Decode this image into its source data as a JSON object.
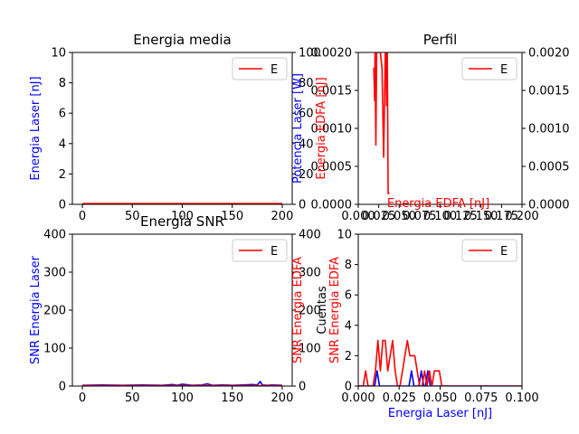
{
  "colors": {
    "blue": "#0000ff",
    "red": "#ff0000",
    "axis": "#000000",
    "legend_edge": "#cccccc"
  },
  "chart_data": [
    {
      "id": "energia-media",
      "type": "line",
      "title": "Energia media",
      "ylabel_left": "Energia Laser [nJ]",
      "ylabel_right": "Potencia Laser [W]",
      "xlim": [
        -10,
        210
      ],
      "ylim_left": [
        0,
        10
      ],
      "ylim_right": [
        0,
        100
      ],
      "xticks": [
        "0",
        "50",
        "100",
        "150",
        "200"
      ],
      "yticks_left": [
        "0",
        "2",
        "4",
        "6",
        "8",
        "10"
      ],
      "yticks_right": [
        "0",
        "20",
        "40",
        "60",
        "80",
        "100"
      ],
      "legend": [
        "E"
      ],
      "legend_position": "upper right",
      "series": [
        {
          "color": "blue",
          "x": [
            0,
            200
          ],
          "y": [
            0.03,
            0.03
          ]
        },
        {
          "name": "E",
          "color": "red",
          "x": [
            0,
            200
          ],
          "y": [
            0.05,
            0.05
          ]
        }
      ]
    },
    {
      "id": "perfil",
      "type": "line",
      "title": "Perfil",
      "ylabel_left": "Energia EDFA [nJ]",
      "xlabel_top": "Energia EDFA [nJ]",
      "xlim": [
        0,
        0.2
      ],
      "ylim_left": [
        0,
        0.002
      ],
      "ylim_right": [
        0,
        0.002
      ],
      "xticks": [
        "0.000",
        "0.025",
        "0.050",
        "0.075",
        "0.100",
        "0.125",
        "0.150",
        "0.175",
        "0.200"
      ],
      "yticks_left": [
        "0.0000",
        "0.0005",
        "0.0010",
        "0.0015",
        "0.0020"
      ],
      "yticks_right": [
        "0.0000",
        "0.0005",
        "0.0010",
        "0.0015",
        "0.0020"
      ],
      "legend": [
        "E"
      ],
      "legend_position": "upper right",
      "series": [
        {
          "name": "E",
          "color": "red",
          "x": [
            0.019,
            0.02,
            0.0205,
            0.021,
            0.0215,
            0.0225,
            0.0235,
            0.025,
            0.027,
            0.029,
            0.031,
            0.033,
            0.034,
            0.0345,
            0.0355,
            0.0365,
            0.038
          ],
          "y": [
            0.0018,
            0.00137,
            0.002,
            0.0014,
            0.00078,
            0.002,
            0.002,
            0.002,
            0.002,
            0.0018,
            0.00062,
            0.002,
            0.002,
            0.0013,
            0.002,
            0.00014,
            0.00015
          ]
        }
      ]
    },
    {
      "id": "energia-snr",
      "type": "line",
      "title": "Energia SNR",
      "ylabel_left": "SNR Energia Laser",
      "ylabel_right": "SNR Energia EDFA",
      "xlim": [
        -10,
        210
      ],
      "ylim_left": [
        0,
        400
      ],
      "ylim_right": [
        0,
        400
      ],
      "xticks": [
        "0",
        "50",
        "100",
        "150",
        "200"
      ],
      "yticks_left": [
        "0",
        "100",
        "200",
        "300",
        "400"
      ],
      "yticks_right": [
        "0",
        "100",
        "200",
        "300",
        "400"
      ],
      "legend": [
        "E"
      ],
      "legend_position": "upper right",
      "series": [
        {
          "color": "blue",
          "x": [
            0,
            20,
            40,
            60,
            80,
            90,
            95,
            100,
            110,
            120,
            125,
            130,
            140,
            150,
            160,
            170,
            175,
            178,
            180,
            185,
            190,
            200
          ],
          "y": [
            2,
            3,
            2,
            3,
            2,
            4,
            2,
            5,
            2,
            3,
            6,
            2,
            3,
            2,
            3,
            4,
            3,
            12,
            3,
            2,
            3,
            2
          ]
        },
        {
          "name": "E",
          "color": "red",
          "x": [
            0,
            200
          ],
          "y": [
            1,
            1
          ]
        }
      ]
    },
    {
      "id": "histograma",
      "type": "line",
      "title": "",
      "xlabel": "Energia Laser [nJ]",
      "ylabel_left": "Cuentas",
      "ylabel_right": "SNR Energia EDFA",
      "xlim": [
        0,
        0.1
      ],
      "ylim_left": [
        0,
        10
      ],
      "xticks": [
        "0.000",
        "0.025",
        "0.050",
        "0.075",
        "0.100"
      ],
      "yticks_left": [
        "0",
        "2",
        "4",
        "6",
        "8",
        "10"
      ],
      "legend": [
        "E"
      ],
      "legend_position": "upper right",
      "series": [
        {
          "color": "blue",
          "x": [
            0,
            0.01,
            0.0115,
            0.013,
            0.031,
            0.0325,
            0.034,
            0.037,
            0.0385,
            0.04,
            0.041,
            0.0425,
            0.044,
            0.1
          ],
          "y": [
            0,
            0,
            1,
            0,
            0,
            1,
            0,
            0,
            1,
            0,
            0,
            1,
            0,
            0
          ]
        },
        {
          "name": "E",
          "color": "red",
          "x": [
            0,
            0.003,
            0.0045,
            0.006,
            0.009,
            0.0105,
            0.012,
            0.0135,
            0.015,
            0.0165,
            0.018,
            0.0195,
            0.021,
            0.0225,
            0.024,
            0.0255,
            0.027,
            0.0285,
            0.03,
            0.0315,
            0.033,
            0.0345,
            0.036,
            0.0375,
            0.039,
            0.0405,
            0.042,
            0.0435,
            0.045,
            0.0465,
            0.048,
            0.0495,
            0.051,
            0.0525,
            0.054,
            0.1
          ],
          "y": [
            0,
            0,
            1,
            0,
            0,
            1,
            3,
            1,
            3,
            3,
            1,
            2,
            3,
            1,
            0,
            0,
            1,
            2,
            3,
            2,
            2,
            2,
            1,
            0,
            0,
            1,
            0,
            1,
            0,
            1,
            1,
            1,
            0,
            0,
            0,
            0
          ]
        }
      ]
    }
  ]
}
